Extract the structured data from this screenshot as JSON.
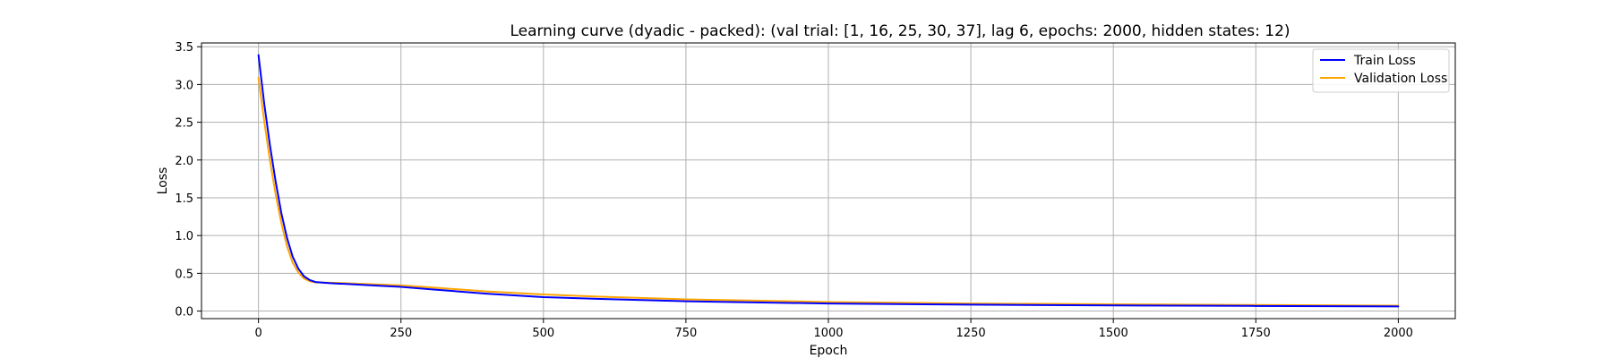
{
  "chart_data": {
    "type": "line",
    "title": "Learning curve (dyadic - packed): (val trial: [1, 16, 25, 30, 37], lag 6, epochs: 2000, hidden states: 12)",
    "xlabel": "Epoch",
    "ylabel": "Loss",
    "xlim": [
      -100,
      2100
    ],
    "ylim": [
      -0.1,
      3.55
    ],
    "xticks": [
      0,
      250,
      500,
      750,
      1000,
      1250,
      1500,
      1750,
      2000
    ],
    "yticks": [
      0.0,
      0.5,
      1.0,
      1.5,
      2.0,
      2.5,
      3.0,
      3.5
    ],
    "grid": true,
    "legend_position": "top-right",
    "series": [
      {
        "name": "Train Loss",
        "color": "#0000ff",
        "x": [
          0,
          10,
          20,
          30,
          40,
          50,
          60,
          70,
          80,
          90,
          100,
          125,
          150,
          200,
          250,
          300,
          400,
          500,
          600,
          750,
          1000,
          1250,
          1500,
          1750,
          2000
        ],
        "y": [
          3.39,
          2.75,
          2.2,
          1.72,
          1.3,
          0.97,
          0.72,
          0.56,
          0.46,
          0.41,
          0.385,
          0.37,
          0.36,
          0.34,
          0.32,
          0.29,
          0.23,
          0.185,
          0.16,
          0.13,
          0.1,
          0.085,
          0.075,
          0.068,
          0.062
        ]
      },
      {
        "name": "Validation Loss",
        "color": "#ffa500",
        "x": [
          0,
          10,
          20,
          30,
          40,
          50,
          60,
          70,
          80,
          90,
          100,
          125,
          150,
          200,
          250,
          300,
          400,
          500,
          600,
          750,
          1000,
          1250,
          1500,
          1750,
          2000
        ],
        "y": [
          3.09,
          2.52,
          2.0,
          1.55,
          1.17,
          0.86,
          0.64,
          0.51,
          0.43,
          0.395,
          0.38,
          0.375,
          0.37,
          0.355,
          0.34,
          0.315,
          0.26,
          0.22,
          0.19,
          0.155,
          0.12,
          0.1,
          0.09,
          0.08,
          0.072
        ]
      }
    ]
  }
}
